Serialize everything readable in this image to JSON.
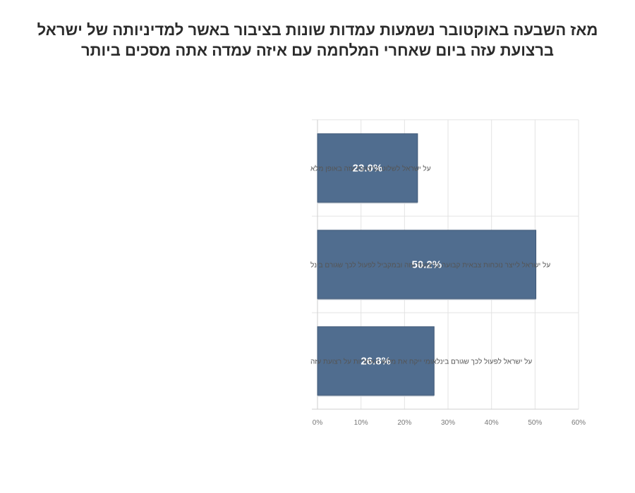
{
  "chart_data": {
    "type": "bar",
    "orientation": "horizontal",
    "title": [
      "מאז השבעה באוקטובר נשמעות עמדות שונות בציבור באשר למדיניותה של ישראל",
      "ברצועת עזה ביום שאחרי המלחמה  עם איזה עמדה אתה מסכים ביותר"
    ],
    "categories": [
      "על ישראל לשלוט ברצועת עזה באופן מלא",
      "על ישראל לייצר נוכחות צבאית קבועה ברצועת עזה ובמקביל לפעול לכך שגורם בינל",
      "על ישראל לפעול לכך שגורם בינלאומי ייקח את מלוא האחריות על רצועת עזה"
    ],
    "values": [
      23.0,
      50.2,
      26.8
    ],
    "data_labels": [
      "23.0%",
      "50.2%",
      "26.8%"
    ],
    "xlim": [
      0,
      60
    ],
    "xticks": [
      "0%",
      "10%",
      "20%",
      "30%",
      "40%",
      "50%",
      "60%"
    ],
    "grid": true,
    "legend": "none",
    "bar_color": "#506d8f"
  }
}
